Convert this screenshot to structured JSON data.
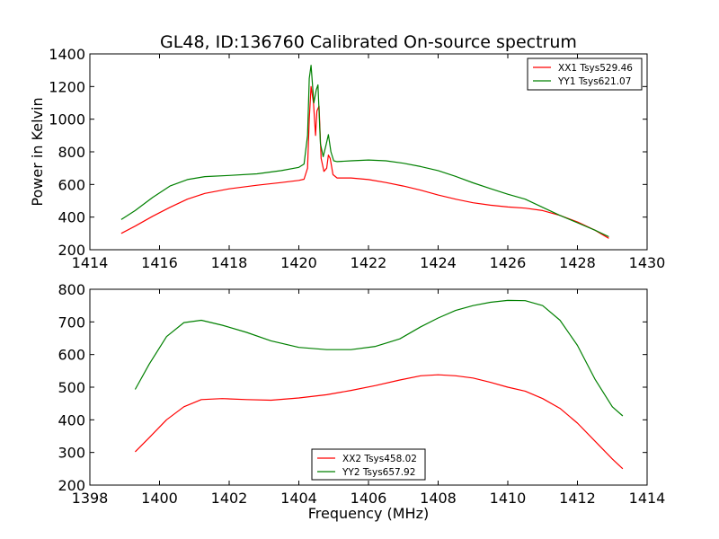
{
  "figure": {
    "title": "GL48, ID:136760 Calibrated On-source spectrum",
    "ylabel": "Power in Kelvin",
    "xlabel": "Frequency (MHz)"
  },
  "chart_data": [
    {
      "type": "line",
      "title": "GL48, ID:136760 Calibrated On-source spectrum",
      "xlabel": "",
      "ylabel": "Power in Kelvin",
      "xlim": [
        1414,
        1430
      ],
      "ylim": [
        200,
        1400
      ],
      "xticks": [
        1414,
        1416,
        1418,
        1420,
        1422,
        1424,
        1426,
        1428,
        1430
      ],
      "yticks": [
        200,
        400,
        600,
        800,
        1000,
        1200,
        1400
      ],
      "grid": false,
      "legend_position": "top-right",
      "series": [
        {
          "name": "XX1 Tsys529.46",
          "color": "#ff0000",
          "x": [
            1414.9,
            1415.3,
            1415.8,
            1416.3,
            1416.8,
            1417.3,
            1418.0,
            1418.8,
            1419.5,
            1420.0,
            1420.15,
            1420.25,
            1420.3,
            1420.35,
            1420.42,
            1420.48,
            1420.52,
            1420.58,
            1420.64,
            1420.72,
            1420.8,
            1420.85,
            1420.9,
            1420.98,
            1421.1,
            1421.5,
            1422.0,
            1422.5,
            1423.0,
            1423.5,
            1424.0,
            1424.5,
            1425.0,
            1425.5,
            1426.0,
            1426.5,
            1427.0,
            1427.5,
            1428.0,
            1428.5,
            1428.9
          ],
          "values": [
            300,
            345,
            405,
            460,
            510,
            545,
            573,
            595,
            612,
            625,
            632,
            700,
            1000,
            1200,
            1100,
            900,
            1050,
            1080,
            760,
            680,
            700,
            780,
            760,
            660,
            640,
            640,
            630,
            612,
            590,
            565,
            535,
            510,
            488,
            473,
            462,
            455,
            440,
            410,
            370,
            320,
            270
          ]
        },
        {
          "name": "YY1 Tsys621.07",
          "color": "#008000",
          "x": [
            1414.9,
            1415.3,
            1415.8,
            1416.3,
            1416.8,
            1417.3,
            1418.0,
            1418.8,
            1419.5,
            1420.0,
            1420.15,
            1420.25,
            1420.3,
            1420.35,
            1420.43,
            1420.5,
            1420.55,
            1420.62,
            1420.7,
            1420.78,
            1420.85,
            1420.92,
            1421.0,
            1421.1,
            1421.5,
            1422.0,
            1422.5,
            1423.0,
            1423.5,
            1424.0,
            1424.5,
            1425.0,
            1425.5,
            1426.0,
            1426.5,
            1427.0,
            1427.5,
            1428.0,
            1428.5,
            1428.9
          ],
          "values": [
            385,
            440,
            520,
            590,
            630,
            648,
            655,
            665,
            685,
            705,
            725,
            900,
            1250,
            1330,
            1100,
            1180,
            1210,
            850,
            770,
            840,
            905,
            800,
            745,
            740,
            745,
            750,
            745,
            730,
            710,
            685,
            650,
            610,
            575,
            540,
            510,
            460,
            410,
            365,
            320,
            280
          ]
        }
      ]
    },
    {
      "type": "line",
      "title": "",
      "xlabel": "Frequency (MHz)",
      "ylabel": "",
      "xlim": [
        1398,
        1414
      ],
      "ylim": [
        200,
        800
      ],
      "xticks": [
        1398,
        1400,
        1402,
        1404,
        1406,
        1408,
        1410,
        1412,
        1414
      ],
      "yticks": [
        200,
        300,
        400,
        500,
        600,
        700,
        800
      ],
      "grid": false,
      "legend_position": "bottom-center",
      "series": [
        {
          "name": "XX2 Tsys458.02",
          "color": "#ff0000",
          "x": [
            1399.3,
            1399.7,
            1400.2,
            1400.7,
            1401.2,
            1401.8,
            1402.5,
            1403.2,
            1404.0,
            1404.8,
            1405.5,
            1406.2,
            1406.9,
            1407.5,
            1408.0,
            1408.5,
            1409.0,
            1409.5,
            1410.0,
            1410.5,
            1411.0,
            1411.5,
            1412.0,
            1412.5,
            1413.0,
            1413.3
          ],
          "values": [
            302,
            345,
            400,
            440,
            462,
            465,
            462,
            460,
            467,
            477,
            490,
            505,
            522,
            535,
            538,
            535,
            528,
            515,
            500,
            488,
            465,
            435,
            390,
            335,
            280,
            250
          ]
        },
        {
          "name": "YY2 Tsys657.92",
          "color": "#008000",
          "x": [
            1399.3,
            1399.7,
            1400.2,
            1400.7,
            1401.2,
            1401.8,
            1402.5,
            1403.2,
            1404.0,
            1404.8,
            1405.5,
            1406.2,
            1406.9,
            1407.5,
            1408.0,
            1408.5,
            1409.0,
            1409.5,
            1410.0,
            1410.5,
            1411.0,
            1411.5,
            1412.0,
            1412.5,
            1413.0,
            1413.3
          ],
          "values": [
            493,
            570,
            655,
            698,
            705,
            690,
            668,
            642,
            622,
            615,
            615,
            625,
            648,
            685,
            712,
            735,
            750,
            760,
            766,
            765,
            750,
            705,
            628,
            525,
            440,
            412
          ]
        }
      ]
    }
  ]
}
